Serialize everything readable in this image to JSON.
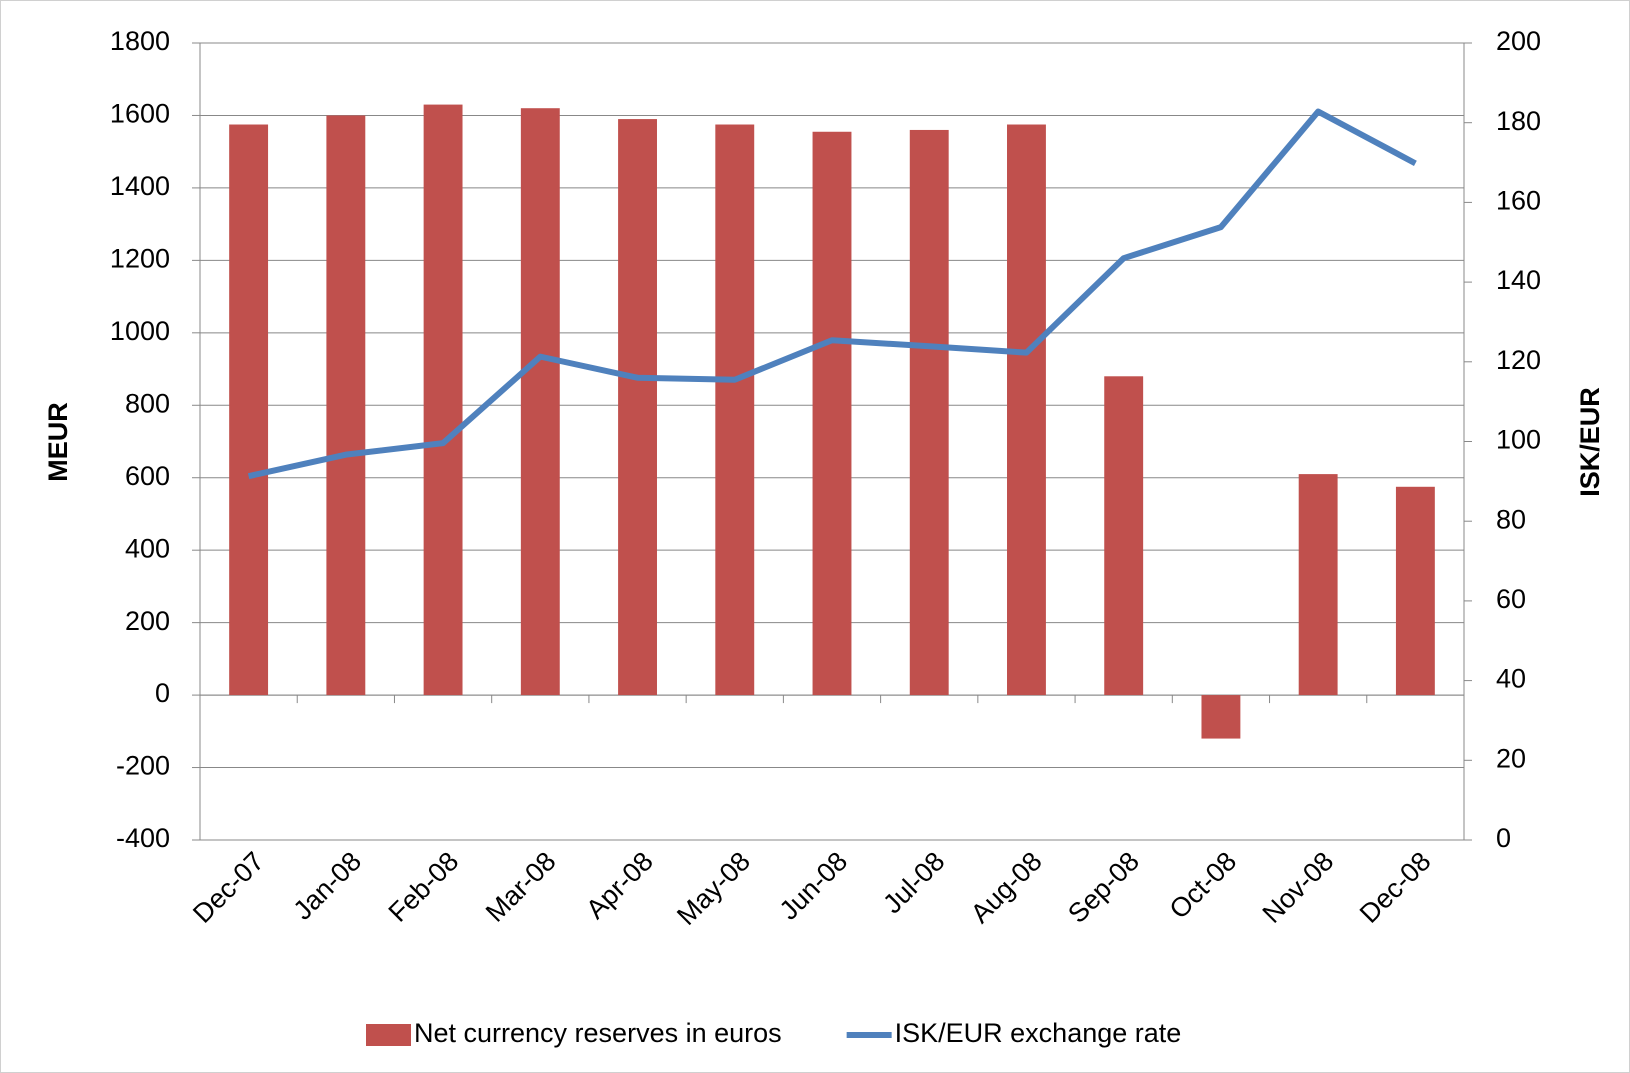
{
  "chart_data": {
    "type": "bar_line",
    "categories": [
      "Dec-07",
      "Jan-08",
      "Feb-08",
      "Mar-08",
      "Apr-08",
      "May-08",
      "Jun-08",
      "Jul-08",
      "Aug-08",
      "Sep-08",
      "Oct-08",
      "Nov-08",
      "Dec-08"
    ],
    "series": [
      {
        "name": "Net currency reserves  in euros",
        "type": "bar",
        "color": "#c0504d",
        "axis": "y",
        "values": [
          1575,
          1600,
          1630,
          1620,
          1590,
          1575,
          1555,
          1560,
          1575,
          880,
          -120,
          610,
          575
        ]
      },
      {
        "name": "ISK/EUR exchange rate",
        "type": "line",
        "color": "#4f81bd",
        "axis": "y2",
        "values": [
          91.3,
          96.7,
          99.6,
          121.3,
          116,
          115.5,
          125.4,
          123.9,
          122.3,
          146,
          153.8,
          182.8,
          169.8
        ]
      }
    ],
    "y_label": "MEUR",
    "y2_label": "ISK/EUR",
    "ylim": [
      -400,
      1800
    ],
    "yticks": [
      -400,
      -200,
      0,
      200,
      400,
      600,
      800,
      1000,
      1200,
      1400,
      1600,
      1800
    ],
    "y2lim": [
      0,
      200
    ],
    "y2ticks": [
      0,
      20,
      40,
      60,
      80,
      100,
      120,
      140,
      160,
      180,
      200
    ],
    "grid": true,
    "legend": "bottom"
  }
}
